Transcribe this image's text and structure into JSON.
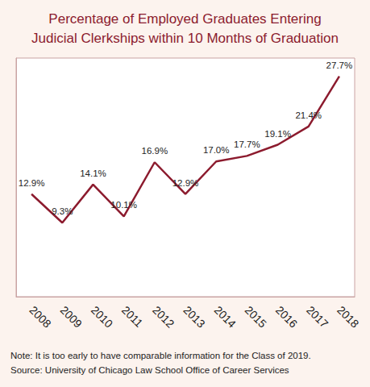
{
  "chart_data": {
    "type": "line",
    "title": "Percentage of Employed Graduates Entering\nJudicial Clerkships within 10 Months of Graduation",
    "annotations": [
      "Note: It is too early to have comparable information for the Class of 2019.",
      "Source: University of Chicago Law School Office of Career Services"
    ],
    "categories": [
      "2008",
      "2009",
      "2010",
      "2011",
      "2012",
      "2013",
      "2014",
      "2015",
      "2016",
      "2017",
      "2018"
    ],
    "values": [
      12.9,
      9.3,
      14.1,
      10.1,
      16.9,
      12.9,
      17.0,
      17.7,
      19.1,
      21.4,
      27.7
    ],
    "value_labels": [
      "12.9%",
      "9.3%",
      "14.1%",
      "10.1%",
      "16.9%",
      "12.9%",
      "17.0%",
      "17.7%",
      "19.1%",
      "21.4%",
      "27.7%"
    ],
    "color": "#8c1b2e",
    "ylim": [
      0,
      30
    ],
    "tick_labels": "x",
    "data_labels": true,
    "grid": false,
    "marker": "none"
  }
}
